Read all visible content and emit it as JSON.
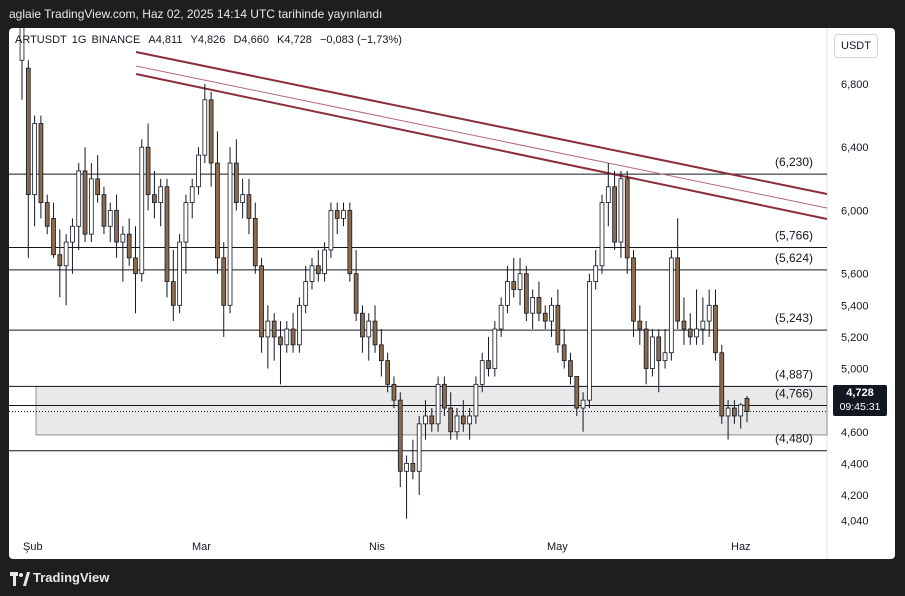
{
  "header": {
    "publish_line": "aglaie TradingView.com, Haz 02, 2025 14:14 UTC tarihinde yayınlandı"
  },
  "symbol": {
    "name": "ARTUSDT",
    "interval": "1G",
    "exchange": "BINANCE",
    "open": "A4,811",
    "high": "Y4,826",
    "low": "D4,660",
    "close": "K4,728",
    "change": "−0,083 (−1,73%)",
    "currency_button": "USDT"
  },
  "last_price": {
    "price": "4,728",
    "countdown": "09:45:31"
  },
  "footer": {
    "brand": "TradingView"
  },
  "colors": {
    "up": "#ffffff",
    "down": "#8b6b4e",
    "wick": "#131722",
    "trendline": "#8b2d3a",
    "level_line": "#131722",
    "zone_fill": "#e9e9e9"
  },
  "chart_data": {
    "type": "candlestick",
    "ylim": [
      4.0,
      7.3
    ],
    "y_ticks": [
      "6,800",
      "6,400",
      "6,000",
      "5,600",
      "5,400",
      "5,200",
      "5,000",
      "4,800",
      "4,600",
      "4,400",
      "4,200",
      "4,040"
    ],
    "x_ticks": [
      "Şub",
      "Mar",
      "Nis",
      "May",
      "Haz"
    ],
    "levels": [
      {
        "value": 6.23,
        "label": "(6,230)"
      },
      {
        "value": 5.766,
        "label": "(5,766)"
      },
      {
        "value": 5.624,
        "label": "(5,624)"
      },
      {
        "value": 5.243,
        "label": "(5,243)"
      },
      {
        "value": 4.887,
        "label": "(4,887)"
      },
      {
        "value": 4.766,
        "label": "(4,766)"
      },
      {
        "value": 4.48,
        "label": "(4,480)"
      }
    ],
    "zone": {
      "top": 4.887,
      "bottom": 4.58
    },
    "last_price_line": 4.728,
    "trendlines": [
      {
        "from": [
          1,
          7.0
        ],
        "to": [
          1,
          5.77
        ],
        "style": "upper",
        "note": "top of channel"
      },
      {
        "style": "middle"
      },
      {
        "style": "lower"
      }
    ],
    "candles": [
      {
        "o": 6.95,
        "h": 7.25,
        "l": 6.7,
        "c": 7.2
      },
      {
        "o": 6.9,
        "h": 6.95,
        "l": 5.7,
        "c": 6.1
      },
      {
        "o": 6.1,
        "h": 6.6,
        "l": 5.9,
        "c": 6.55
      },
      {
        "o": 6.55,
        "h": 6.6,
        "l": 5.95,
        "c": 6.05
      },
      {
        "o": 6.05,
        "h": 6.1,
        "l": 5.85,
        "c": 5.9
      },
      {
        "o": 5.95,
        "h": 6.05,
        "l": 5.7,
        "c": 5.72
      },
      {
        "o": 5.72,
        "h": 5.88,
        "l": 5.45,
        "c": 5.65
      },
      {
        "o": 5.65,
        "h": 5.85,
        "l": 5.4,
        "c": 5.8
      },
      {
        "o": 5.8,
        "h": 5.95,
        "l": 5.6,
        "c": 5.9
      },
      {
        "o": 5.9,
        "h": 6.3,
        "l": 5.75,
        "c": 6.25
      },
      {
        "o": 6.25,
        "h": 6.4,
        "l": 5.8,
        "c": 5.85
      },
      {
        "o": 5.85,
        "h": 6.3,
        "l": 5.8,
        "c": 6.2
      },
      {
        "o": 6.2,
        "h": 6.35,
        "l": 6.05,
        "c": 6.1
      },
      {
        "o": 6.1,
        "h": 6.15,
        "l": 5.85,
        "c": 5.9
      },
      {
        "o": 5.9,
        "h": 6.05,
        "l": 5.8,
        "c": 6.0
      },
      {
        "o": 6.0,
        "h": 6.1,
        "l": 5.7,
        "c": 5.8
      },
      {
        "o": 5.8,
        "h": 5.9,
        "l": 5.55,
        "c": 5.85
      },
      {
        "o": 5.85,
        "h": 5.95,
        "l": 5.65,
        "c": 5.7
      },
      {
        "o": 5.7,
        "h": 5.9,
        "l": 5.35,
        "c": 5.6
      },
      {
        "o": 5.6,
        "h": 6.45,
        "l": 5.55,
        "c": 6.4
      },
      {
        "o": 6.4,
        "h": 6.55,
        "l": 6.0,
        "c": 6.1
      },
      {
        "o": 6.1,
        "h": 6.25,
        "l": 5.95,
        "c": 6.05
      },
      {
        "o": 6.05,
        "h": 6.2,
        "l": 5.9,
        "c": 6.15
      },
      {
        "o": 6.15,
        "h": 6.2,
        "l": 5.45,
        "c": 5.55
      },
      {
        "o": 5.55,
        "h": 5.75,
        "l": 5.3,
        "c": 5.4
      },
      {
        "o": 5.4,
        "h": 5.85,
        "l": 5.35,
        "c": 5.8
      },
      {
        "o": 5.8,
        "h": 6.1,
        "l": 5.6,
        "c": 6.05
      },
      {
        "o": 6.05,
        "h": 6.2,
        "l": 5.95,
        "c": 6.15
      },
      {
        "o": 6.15,
        "h": 6.4,
        "l": 6.1,
        "c": 6.35
      },
      {
        "o": 6.35,
        "h": 6.8,
        "l": 6.3,
        "c": 6.7
      },
      {
        "o": 6.7,
        "h": 6.75,
        "l": 6.15,
        "c": 6.3
      },
      {
        "o": 6.3,
        "h": 6.5,
        "l": 5.6,
        "c": 5.7
      },
      {
        "o": 5.7,
        "h": 5.8,
        "l": 5.2,
        "c": 5.4
      },
      {
        "o": 5.4,
        "h": 6.4,
        "l": 5.35,
        "c": 6.3
      },
      {
        "o": 6.3,
        "h": 6.45,
        "l": 6.0,
        "c": 6.05
      },
      {
        "o": 6.05,
        "h": 6.2,
        "l": 5.95,
        "c": 6.1
      },
      {
        "o": 6.1,
        "h": 6.2,
        "l": 5.85,
        "c": 5.95
      },
      {
        "o": 5.95,
        "h": 6.05,
        "l": 5.6,
        "c": 5.65
      },
      {
        "o": 5.65,
        "h": 5.7,
        "l": 5.1,
        "c": 5.2
      },
      {
        "o": 5.2,
        "h": 5.4,
        "l": 5.0,
        "c": 5.3
      },
      {
        "o": 5.3,
        "h": 5.35,
        "l": 5.05,
        "c": 5.2
      },
      {
        "o": 5.2,
        "h": 5.3,
        "l": 4.9,
        "c": 5.15
      },
      {
        "o": 5.15,
        "h": 5.3,
        "l": 5.1,
        "c": 5.25
      },
      {
        "o": 5.25,
        "h": 5.35,
        "l": 5.1,
        "c": 5.15
      },
      {
        "o": 5.15,
        "h": 5.45,
        "l": 5.1,
        "c": 5.4
      },
      {
        "o": 5.4,
        "h": 5.65,
        "l": 5.35,
        "c": 5.55
      },
      {
        "o": 5.55,
        "h": 5.7,
        "l": 5.5,
        "c": 5.65
      },
      {
        "o": 5.65,
        "h": 5.75,
        "l": 5.55,
        "c": 5.6
      },
      {
        "o": 5.6,
        "h": 5.8,
        "l": 5.55,
        "c": 5.75
      },
      {
        "o": 5.75,
        "h": 6.05,
        "l": 5.7,
        "c": 6.0
      },
      {
        "o": 6.0,
        "h": 6.05,
        "l": 5.85,
        "c": 5.95
      },
      {
        "o": 5.95,
        "h": 6.05,
        "l": 5.9,
        "c": 6.0
      },
      {
        "o": 6.0,
        "h": 6.05,
        "l": 5.55,
        "c": 5.6
      },
      {
        "o": 5.6,
        "h": 5.75,
        "l": 5.3,
        "c": 5.35
      },
      {
        "o": 5.35,
        "h": 5.4,
        "l": 5.1,
        "c": 5.2
      },
      {
        "o": 5.2,
        "h": 5.35,
        "l": 5.05,
        "c": 5.3
      },
      {
        "o": 5.3,
        "h": 5.4,
        "l": 5.1,
        "c": 5.15
      },
      {
        "o": 5.15,
        "h": 5.25,
        "l": 4.95,
        "c": 5.05
      },
      {
        "o": 5.05,
        "h": 5.1,
        "l": 4.85,
        "c": 4.9
      },
      {
        "o": 4.9,
        "h": 4.95,
        "l": 4.75,
        "c": 4.8
      },
      {
        "o": 4.8,
        "h": 4.85,
        "l": 4.25,
        "c": 4.35
      },
      {
        "o": 4.35,
        "h": 4.45,
        "l": 4.05,
        "c": 4.4
      },
      {
        "o": 4.4,
        "h": 4.55,
        "l": 4.3,
        "c": 4.35
      },
      {
        "o": 4.35,
        "h": 4.7,
        "l": 4.2,
        "c": 4.65
      },
      {
        "o": 4.65,
        "h": 4.8,
        "l": 4.55,
        "c": 4.7
      },
      {
        "o": 4.7,
        "h": 4.75,
        "l": 4.6,
        "c": 4.65
      },
      {
        "o": 4.65,
        "h": 4.95,
        "l": 4.6,
        "c": 4.9
      },
      {
        "o": 4.9,
        "h": 4.95,
        "l": 4.7,
        "c": 4.75
      },
      {
        "o": 4.75,
        "h": 4.85,
        "l": 4.55,
        "c": 4.6
      },
      {
        "o": 4.6,
        "h": 4.75,
        "l": 4.55,
        "c": 4.7
      },
      {
        "o": 4.7,
        "h": 4.8,
        "l": 4.6,
        "c": 4.65
      },
      {
        "o": 4.65,
        "h": 4.75,
        "l": 4.55,
        "c": 4.7
      },
      {
        "o": 4.7,
        "h": 4.95,
        "l": 4.65,
        "c": 4.9
      },
      {
        "o": 4.9,
        "h": 5.1,
        "l": 4.85,
        "c": 5.05
      },
      {
        "o": 5.05,
        "h": 5.2,
        "l": 4.95,
        "c": 5.0
      },
      {
        "o": 5.0,
        "h": 5.3,
        "l": 4.95,
        "c": 5.25
      },
      {
        "o": 5.25,
        "h": 5.45,
        "l": 5.2,
        "c": 5.4
      },
      {
        "o": 5.4,
        "h": 5.65,
        "l": 5.35,
        "c": 5.55
      },
      {
        "o": 5.55,
        "h": 5.7,
        "l": 5.45,
        "c": 5.5
      },
      {
        "o": 5.5,
        "h": 5.7,
        "l": 5.4,
        "c": 5.6
      },
      {
        "o": 5.6,
        "h": 5.65,
        "l": 5.3,
        "c": 5.35
      },
      {
        "o": 5.35,
        "h": 5.5,
        "l": 5.25,
        "c": 5.45
      },
      {
        "o": 5.45,
        "h": 5.55,
        "l": 5.3,
        "c": 5.35
      },
      {
        "o": 5.35,
        "h": 5.4,
        "l": 5.25,
        "c": 5.3
      },
      {
        "o": 5.3,
        "h": 5.45,
        "l": 5.2,
        "c": 5.4
      },
      {
        "o": 5.4,
        "h": 5.5,
        "l": 5.1,
        "c": 5.15
      },
      {
        "o": 5.15,
        "h": 5.25,
        "l": 5.0,
        "c": 5.05
      },
      {
        "o": 5.05,
        "h": 5.1,
        "l": 4.9,
        "c": 4.95
      },
      {
        "o": 4.95,
        "h": 4.95,
        "l": 4.7,
        "c": 4.75
      },
      {
        "o": 4.75,
        "h": 4.85,
        "l": 4.6,
        "c": 4.8
      },
      {
        "o": 4.8,
        "h": 5.6,
        "l": 4.75,
        "c": 5.55
      },
      {
        "o": 5.55,
        "h": 5.75,
        "l": 5.5,
        "c": 5.65
      },
      {
        "o": 5.65,
        "h": 6.1,
        "l": 5.6,
        "c": 6.05
      },
      {
        "o": 6.05,
        "h": 6.3,
        "l": 5.9,
        "c": 6.15
      },
      {
        "o": 6.15,
        "h": 6.25,
        "l": 5.75,
        "c": 5.8
      },
      {
        "o": 5.8,
        "h": 6.25,
        "l": 5.7,
        "c": 6.2
      },
      {
        "o": 6.2,
        "h": 6.25,
        "l": 5.6,
        "c": 5.7
      },
      {
        "o": 5.7,
        "h": 5.75,
        "l": 5.2,
        "c": 5.3
      },
      {
        "o": 5.3,
        "h": 5.4,
        "l": 5.15,
        "c": 5.25
      },
      {
        "o": 5.25,
        "h": 5.3,
        "l": 4.9,
        "c": 5.0
      },
      {
        "o": 5.0,
        "h": 5.25,
        "l": 4.95,
        "c": 5.2
      },
      {
        "o": 5.2,
        "h": 5.25,
        "l": 4.85,
        "c": 5.05
      },
      {
        "o": 5.05,
        "h": 5.25,
        "l": 5.0,
        "c": 5.1
      },
      {
        "o": 5.1,
        "h": 5.75,
        "l": 5.05,
        "c": 5.7
      },
      {
        "o": 5.7,
        "h": 5.95,
        "l": 5.25,
        "c": 5.3
      },
      {
        "o": 5.3,
        "h": 5.45,
        "l": 5.15,
        "c": 5.25
      },
      {
        "o": 5.25,
        "h": 5.35,
        "l": 5.15,
        "c": 5.2
      },
      {
        "o": 5.2,
        "h": 5.5,
        "l": 5.15,
        "c": 5.25
      },
      {
        "o": 5.25,
        "h": 5.45,
        "l": 5.15,
        "c": 5.3
      },
      {
        "o": 5.3,
        "h": 5.5,
        "l": 5.2,
        "c": 5.4
      },
      {
        "o": 5.4,
        "h": 5.5,
        "l": 5.05,
        "c": 5.1
      },
      {
        "o": 5.1,
        "h": 5.15,
        "l": 4.65,
        "c": 4.7
      },
      {
        "o": 4.7,
        "h": 4.8,
        "l": 4.55,
        "c": 4.75
      },
      {
        "o": 4.75,
        "h": 4.8,
        "l": 4.65,
        "c": 4.7
      },
      {
        "o": 4.7,
        "h": 4.78,
        "l": 4.62,
        "c": 4.77
      },
      {
        "o": 4.811,
        "h": 4.826,
        "l": 4.66,
        "c": 4.728
      }
    ]
  }
}
